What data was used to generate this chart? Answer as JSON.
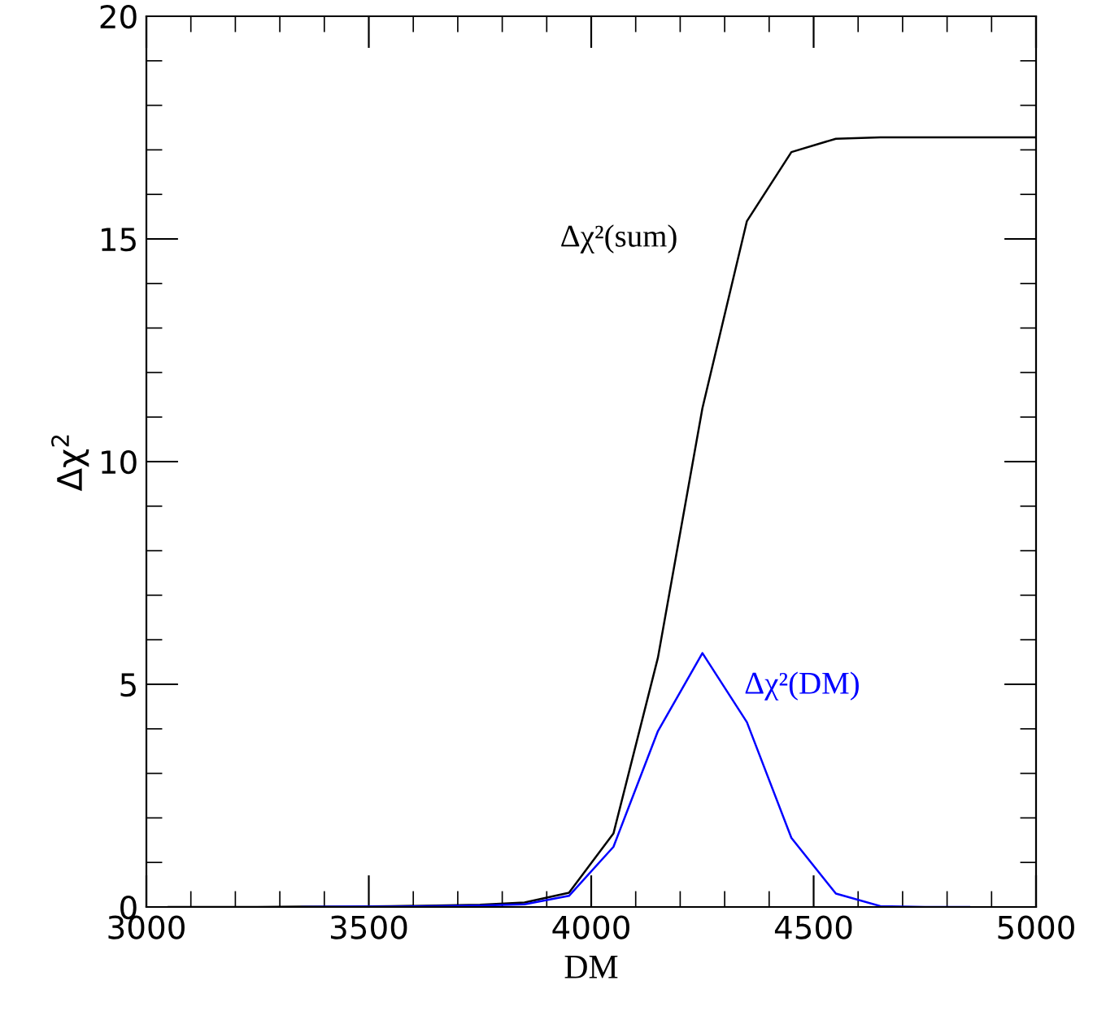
{
  "chart_data": {
    "type": "line",
    "xlabel": "DM",
    "ylabel": "Δχ$^{2}$",
    "x": [
      3050,
      3150,
      3250,
      3350,
      3450,
      3550,
      3650,
      3750,
      3850,
      3950,
      4050,
      4150,
      4250,
      4350,
      4450,
      4550,
      4650,
      4750,
      4850,
      4950,
      5000
    ],
    "series": [
      {
        "color": "#000000",
        "values": [
          0,
          0,
          0,
          0.01,
          0.01,
          0.02,
          0.03,
          0.05,
          0.1,
          0.32,
          1.65,
          5.6,
          11.2,
          15.4,
          16.95,
          17.25,
          17.28,
          17.28,
          17.28,
          17.28,
          17.28
        ]
      },
      {
        "color": "#0000ff",
        "values": [
          null,
          null,
          null,
          0,
          0.01,
          0.01,
          0.02,
          0.03,
          0.06,
          0.25,
          1.35,
          3.95,
          5.7,
          4.15,
          1.55,
          0.3,
          0.02,
          0,
          0,
          null,
          null
        ]
      }
    ],
    "annotations": [
      "Δχ²(sum)",
      "Δχ²(DM)"
    ],
    "xlim": [
      3000,
      5000
    ],
    "ylim": [
      0,
      20
    ],
    "xticks": [
      3000,
      3500,
      4000,
      4500,
      5000
    ],
    "yticks": [
      0,
      5,
      10,
      15,
      20
    ],
    "grid": false,
    "legend": false,
    "line_style": "solid"
  }
}
